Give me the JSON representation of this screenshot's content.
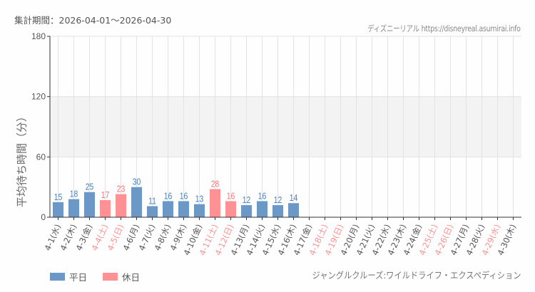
{
  "header": {
    "period": "集計期間：2026-04-01～2026-04-30",
    "credit": "ディズニーリアル https://disneyreal.asumirai.info"
  },
  "legend": {
    "weekday_label": "平日",
    "holiday_label": "休日"
  },
  "footer": {
    "attraction": "ジャングルクルーズ:ワイルドライフ・エクスペディション"
  },
  "colors": {
    "weekday": "#6b98c6",
    "holiday": "#fd9193",
    "weekday_text": "#4f80b5",
    "holiday_text": "#f07b7f",
    "band": "#f3f3f3",
    "grid": "#e3e3e3"
  },
  "chart_data": {
    "type": "bar",
    "title": "",
    "xlabel": "",
    "ylabel": "平均待ち時間（分）",
    "ylim": [
      0,
      180
    ],
    "yticks": [
      0,
      60,
      120,
      180
    ],
    "grid": true,
    "legend_position": "bottom-left",
    "categories": [
      "4-1(水)",
      "4-2(木)",
      "4-3(金)",
      "4-4(土)",
      "4-5(日)",
      "4-6(月)",
      "4-7(火)",
      "4-8(水)",
      "4-9(木)",
      "4-10(金)",
      "4-11(土)",
      "4-12(日)",
      "4-13(月)",
      "4-14(火)",
      "4-15(水)",
      "4-16(木)",
      "4-17(金)",
      "4-18(土)",
      "4-19(日)",
      "4-20(月)",
      "4-21(火)",
      "4-22(水)",
      "4-23(木)",
      "4-24(金)",
      "4-25(土)",
      "4-26(日)",
      "4-27(月)",
      "4-28(火)",
      "4-29(水)",
      "4-30(木)"
    ],
    "day_type": [
      "weekday",
      "weekday",
      "weekday",
      "holiday",
      "holiday",
      "weekday",
      "weekday",
      "weekday",
      "weekday",
      "weekday",
      "holiday",
      "holiday",
      "weekday",
      "weekday",
      "weekday",
      "weekday",
      "weekday",
      "holiday",
      "holiday",
      "weekday",
      "weekday",
      "weekday",
      "weekday",
      "weekday",
      "holiday",
      "holiday",
      "weekday",
      "weekday",
      "holiday",
      "weekday"
    ],
    "values": [
      15,
      18,
      25,
      17,
      23,
      30,
      11,
      16,
      16,
      13,
      28,
      16,
      12,
      16,
      12,
      14,
      null,
      null,
      null,
      null,
      null,
      null,
      null,
      null,
      null,
      null,
      null,
      null,
      null,
      null
    ],
    "series": [
      {
        "name": "平日",
        "values": [
          15,
          18,
          25,
          null,
          null,
          30,
          11,
          16,
          16,
          13,
          null,
          null,
          12,
          16,
          12,
          14,
          null,
          null,
          null,
          null,
          null,
          null,
          null,
          null,
          null,
          null,
          null,
          null,
          null,
          null
        ]
      },
      {
        "name": "休日",
        "values": [
          null,
          null,
          null,
          17,
          23,
          null,
          null,
          null,
          null,
          null,
          28,
          16,
          null,
          null,
          null,
          null,
          null,
          null,
          null,
          null,
          null,
          null,
          null,
          null,
          null,
          null,
          null,
          null,
          null,
          null
        ]
      }
    ]
  }
}
